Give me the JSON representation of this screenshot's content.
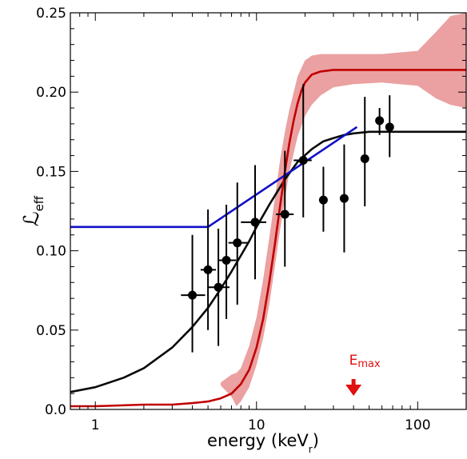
{
  "chart_data": {
    "type": "scatter",
    "title": "",
    "xlabel_main": "energy (keV",
    "xlabel_sub": "r",
    "xlabel_close": ")",
    "ylabel_main": "ℒ",
    "ylabel_sub": "eff",
    "x_scale": "log",
    "xlim": [
      0.7,
      200
    ],
    "ylim": [
      0.0,
      0.25
    ],
    "x_ticks": [
      {
        "value": 1,
        "label": "1"
      },
      {
        "value": 10,
        "label": "10"
      },
      {
        "value": 100,
        "label": "100"
      }
    ],
    "y_ticks": [
      {
        "value": 0.0,
        "label": "0.0"
      },
      {
        "value": 0.05,
        "label": "0.05"
      },
      {
        "value": 0.1,
        "label": "0.10"
      },
      {
        "value": 0.15,
        "label": "0.15"
      },
      {
        "value": 0.2,
        "label": "0.20"
      },
      {
        "value": 0.25,
        "label": "0.25"
      }
    ],
    "grid": false,
    "annotation": {
      "text_main": "E",
      "text_sub": "max",
      "x": 40,
      "color": "#e0100e"
    },
    "points": [
      {
        "x": 4.0,
        "y": 0.072,
        "xerr": [
          0.6,
          0.8
        ],
        "yerr": [
          0.036,
          0.038
        ]
      },
      {
        "x": 5.0,
        "y": 0.088,
        "xerr": [
          0.5,
          0.6
        ],
        "yerr": [
          0.038,
          0.038
        ]
      },
      {
        "x": 5.8,
        "y": 0.077,
        "xerr": [
          0.8,
          1.0
        ],
        "yerr": [
          0.037,
          0.037
        ]
      },
      {
        "x": 6.5,
        "y": 0.094,
        "xerr": [
          0.7,
          1.0
        ],
        "yerr": [
          0.037,
          0.035
        ]
      },
      {
        "x": 7.6,
        "y": 0.105,
        "xerr": [
          0.9,
          1.2
        ],
        "yerr": [
          0.039,
          0.038
        ]
      },
      {
        "x": 9.8,
        "y": 0.118,
        "xerr": [
          1.8,
          1.7
        ],
        "yerr": [
          0.036,
          0.036
        ]
      },
      {
        "x": 15.0,
        "y": 0.123,
        "xerr": [
          1.8,
          2.0
        ],
        "yerr": [
          0.033,
          0.04
        ]
      },
      {
        "x": 19.5,
        "y": 0.157,
        "xerr": [
          2.5,
          2.5
        ],
        "yerr": [
          0.036,
          0.048
        ]
      },
      {
        "x": 26.0,
        "y": 0.132,
        "xerr": [
          0,
          0
        ],
        "yerr": [
          0.02,
          0.021
        ]
      },
      {
        "x": 35.0,
        "y": 0.133,
        "xerr": [
          0,
          0
        ],
        "yerr": [
          0.034,
          0.034
        ]
      },
      {
        "x": 47.0,
        "y": 0.158,
        "xerr": [
          0,
          0
        ],
        "yerr": [
          0.03,
          0.039
        ]
      },
      {
        "x": 58.0,
        "y": 0.182,
        "xerr": [
          0,
          0
        ],
        "yerr": [
          0.009,
          0.008
        ]
      },
      {
        "x": 67.0,
        "y": 0.178,
        "xerr": [
          0,
          0
        ],
        "yerr": [
          0.019,
          0.02
        ]
      }
    ],
    "series": [
      {
        "color": "#0a0a0a",
        "x": [
          0.7,
          1.0,
          1.5,
          2.0,
          3.0,
          4.0,
          5.0,
          6.0,
          7.0,
          8.0,
          9.0,
          10.0,
          12.0,
          15.0,
          18.0,
          22.0,
          26.0,
          30.0,
          35.0,
          40.0,
          50.0,
          70.0,
          100.0,
          150.0,
          200.0
        ],
        "y": [
          0.011,
          0.014,
          0.02,
          0.026,
          0.039,
          0.052,
          0.064,
          0.076,
          0.087,
          0.097,
          0.106,
          0.115,
          0.129,
          0.145,
          0.156,
          0.164,
          0.169,
          0.171,
          0.173,
          0.174,
          0.175,
          0.175,
          0.175,
          0.175,
          0.175
        ]
      },
      {
        "color": "#c00000",
        "x": [
          0.7,
          1.0,
          2.0,
          3.0,
          4.0,
          5.0,
          6.0,
          7.0,
          8.0,
          9.0,
          10.0,
          11.0,
          12.0,
          13.0,
          14.0,
          15.0,
          16.0,
          17.0,
          18.0,
          19.0,
          20.0,
          22.0,
          25.0,
          30.0,
          40.0,
          60.0,
          100.0,
          200.0
        ],
        "y": [
          0.002,
          0.002,
          0.003,
          0.003,
          0.004,
          0.005,
          0.007,
          0.01,
          0.016,
          0.025,
          0.039,
          0.057,
          0.08,
          0.104,
          0.128,
          0.15,
          0.168,
          0.182,
          0.193,
          0.201,
          0.206,
          0.211,
          0.213,
          0.214,
          0.214,
          0.214,
          0.214,
          0.214
        ]
      },
      {
        "color": "#1010c8",
        "x": [
          0.7,
          5.0,
          42.0
        ],
        "y": [
          0.115,
          0.115,
          0.178
        ]
      }
    ],
    "band": {
      "color": "#e89090",
      "x": [
        6.0,
        7.0,
        7.5,
        8.0,
        9.0,
        10.0,
        11.0,
        12.0,
        13.0,
        14.0,
        15.0,
        16.0,
        18.0,
        20.0,
        22.0,
        25.0,
        30.0,
        40.0,
        60.0,
        100.0,
        130.0,
        160.0,
        200.0
      ],
      "upper": [
        0.017,
        0.022,
        0.023,
        0.026,
        0.04,
        0.058,
        0.082,
        0.108,
        0.133,
        0.157,
        0.175,
        0.189,
        0.21,
        0.22,
        0.223,
        0.224,
        0.224,
        0.224,
        0.224,
        0.226,
        0.238,
        0.248,
        0.25
      ],
      "lower": [
        0.015,
        0.008,
        0.002,
        0.005,
        0.014,
        0.028,
        0.045,
        0.066,
        0.09,
        0.113,
        0.133,
        0.15,
        0.172,
        0.185,
        0.192,
        0.198,
        0.203,
        0.205,
        0.206,
        0.204,
        0.196,
        0.192,
        0.19
      ]
    }
  }
}
